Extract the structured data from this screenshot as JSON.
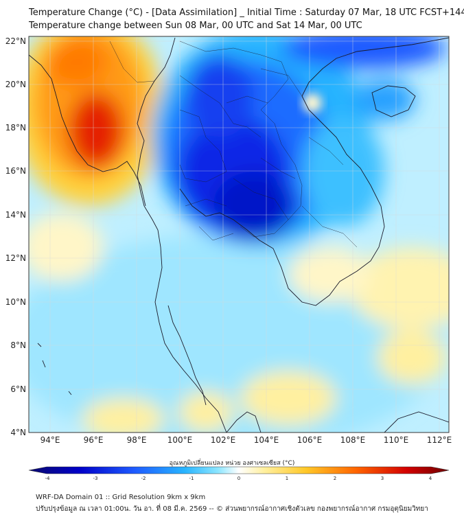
{
  "header": {
    "title_line1": "Temperature Change (°C) - [Data Assimilation] _ Initial Time : Saturday 07 Mar, 18 UTC FCST+144",
    "title_line2": "Temperature change between Sun 08 Mar, 00 UTC and Sat 14 Mar, 00 UTC"
  },
  "axes": {
    "lat_labels": [
      "22°N",
      "20°N",
      "18°N",
      "16°N",
      "14°N",
      "12°N",
      "10°N",
      "8°N",
      "6°N",
      "4°N"
    ],
    "lon_labels": [
      "94°E",
      "96°E",
      "98°E",
      "100°E",
      "102°E",
      "104°E",
      "106°E",
      "108°E",
      "110°E",
      "112°E"
    ]
  },
  "colorbar": {
    "title": "อุณหภูมิเปลี่ยนแปลง หน่วย องศาเซลเซียส (°C)",
    "ticks": [
      "-4",
      "-3",
      "-2",
      "-1",
      "0",
      "1",
      "2",
      "3",
      "4"
    ],
    "range": [
      -4,
      4
    ],
    "colors": [
      "#0a0a6e",
      "#0000c8",
      "#1e5aff",
      "#28b4ff",
      "#8ce6ff",
      "#ffffff",
      "#fff0a0",
      "#ffc828",
      "#ff6400",
      "#d20000",
      "#6e0000"
    ]
  },
  "footer": {
    "line1": "WRF-DA Domain 01 :: Grid Resolution 9km x 9km",
    "line2": "ปรับปรุงข้อมูล ณ เวลา 01:00น. วัน อา. ที่ 08 มี.ค. 2569 -- © ส่วนพยากรณ์อากาศเชิงตัวเลข กองพยากรณ์อากาศ กรมอุตุนิยมวิทยา"
  },
  "map_regions": {
    "warm": "Myanmar west / Bay of Bengal",
    "cold": "Thailand / Laos / Cambodia"
  }
}
